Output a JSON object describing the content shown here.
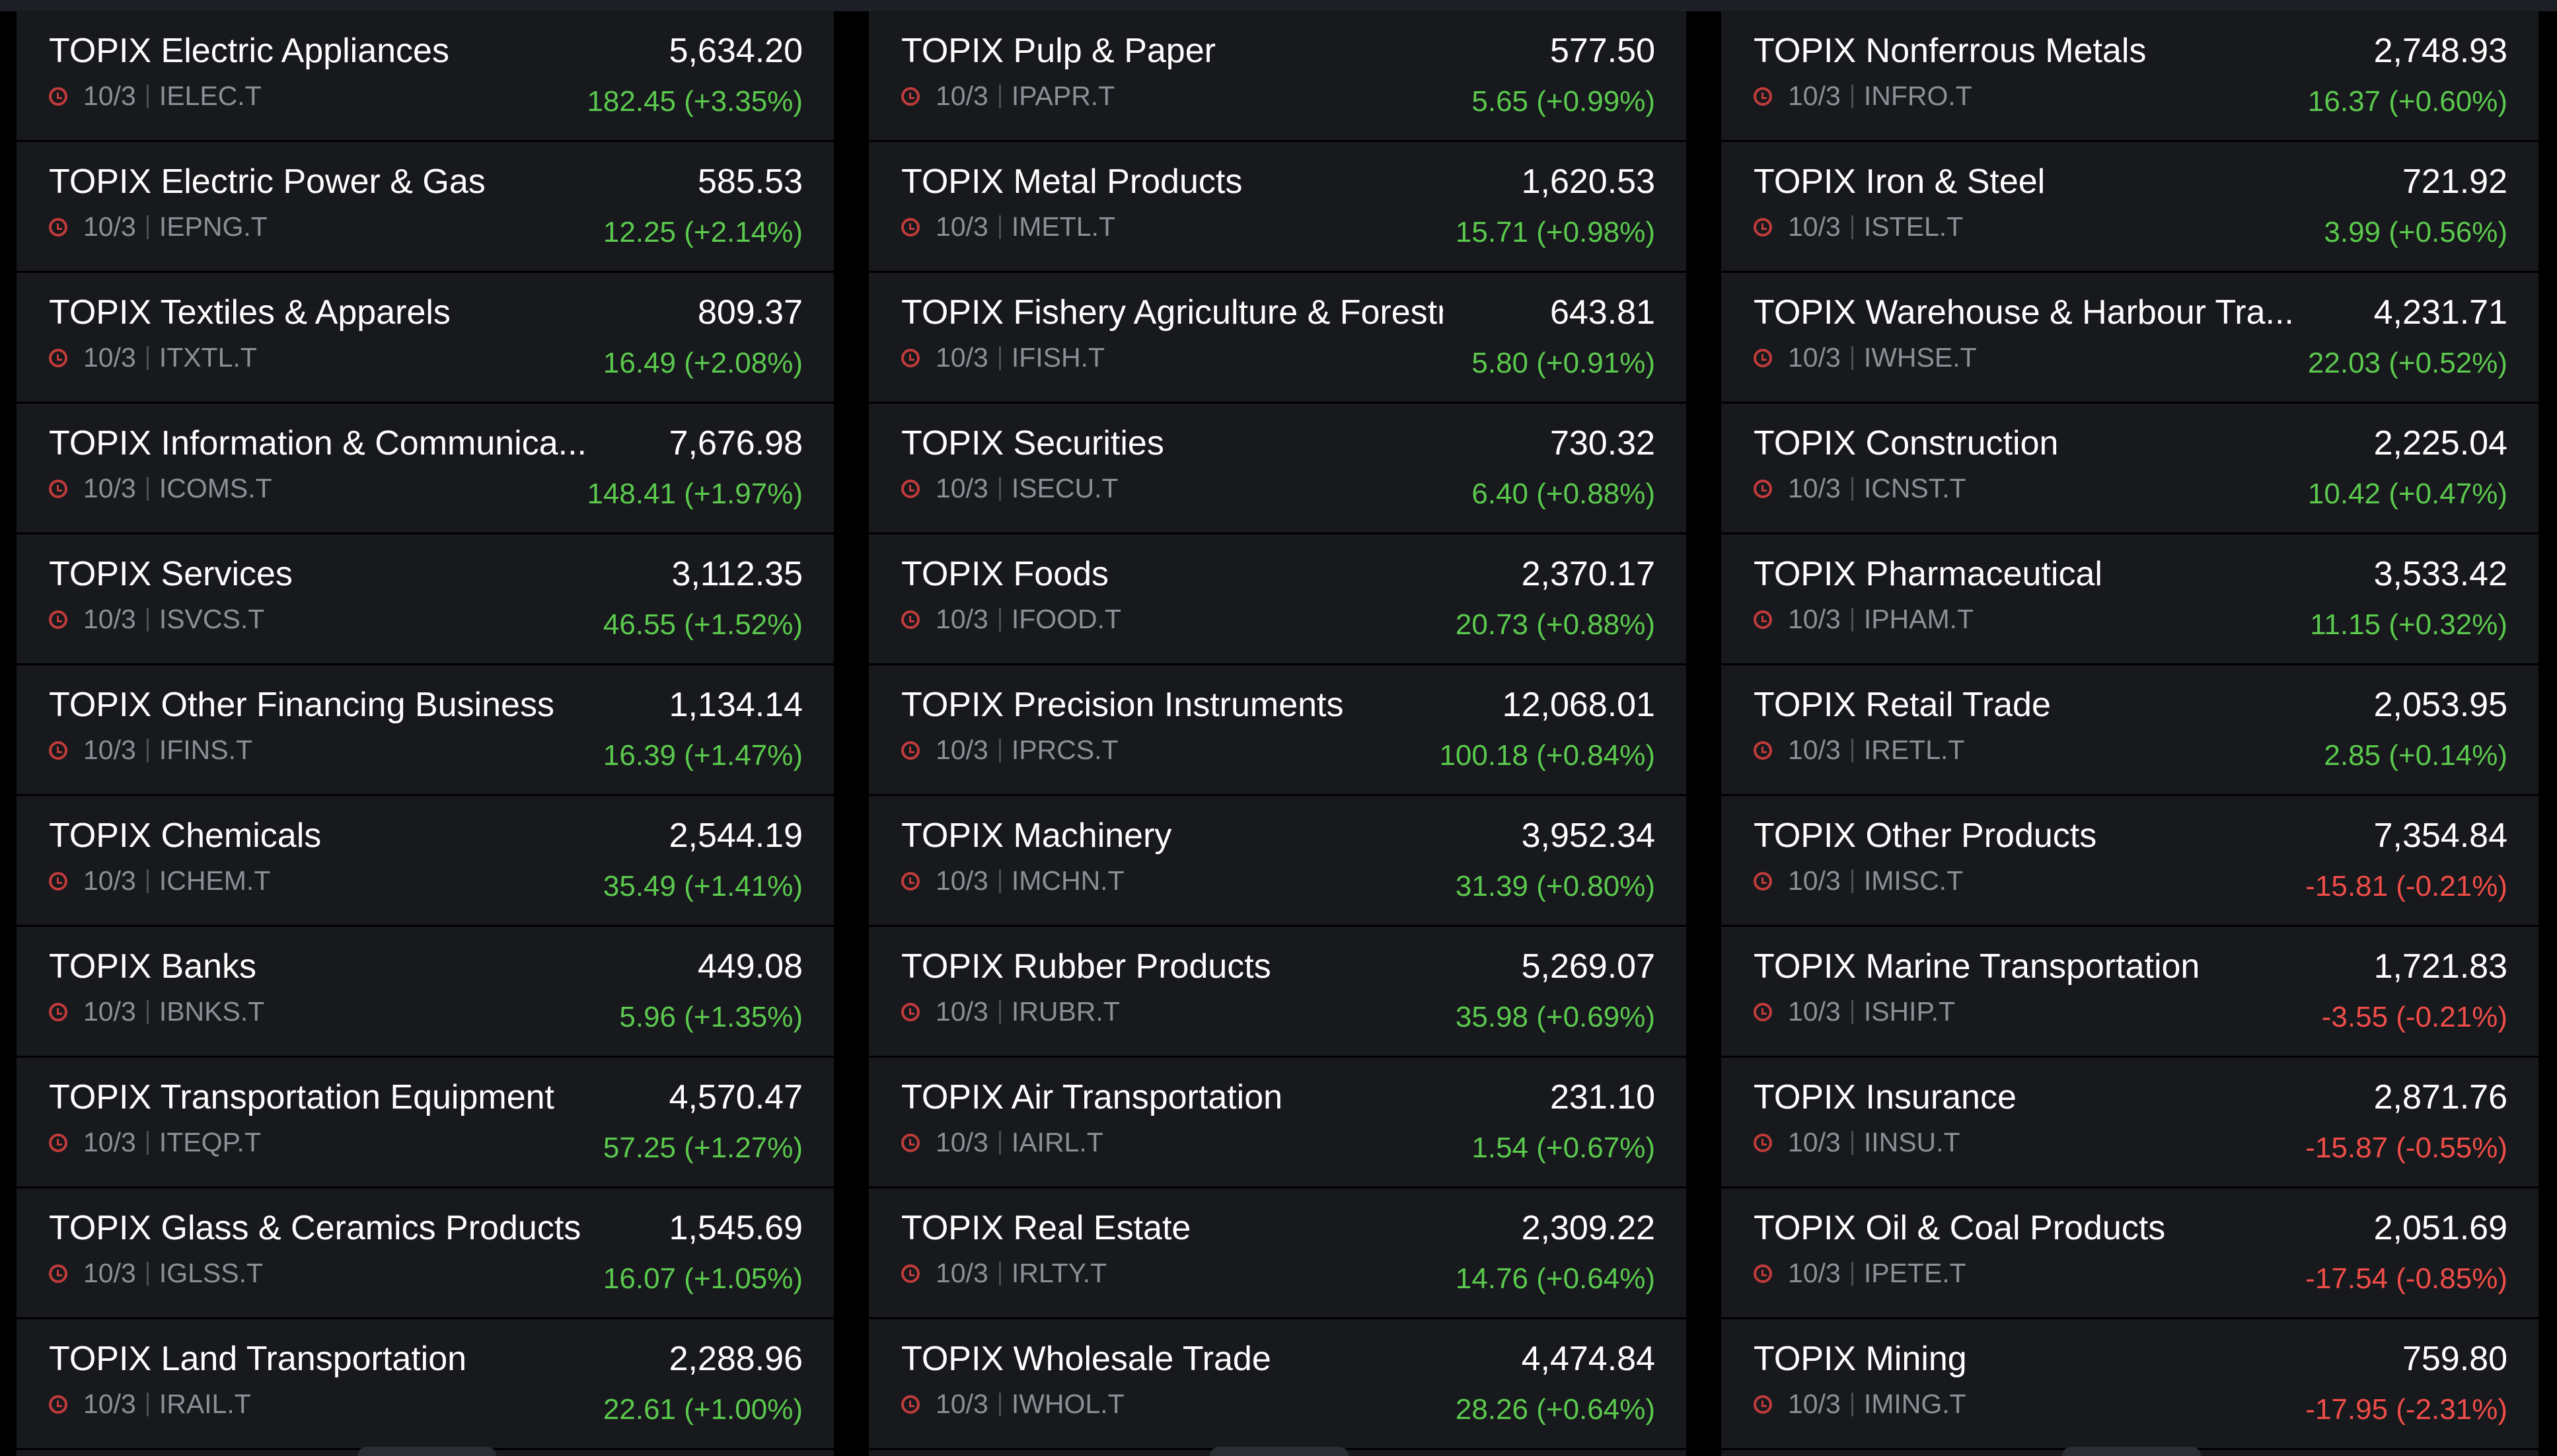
{
  "columns": [
    {
      "rows": [
        {
          "name": "TOPIX Electric Appliances",
          "value": "5,634.20",
          "date": "10/3",
          "symbol": "IELEC.T",
          "change": "182.45 (+3.35%)",
          "direction": "up"
        },
        {
          "name": "TOPIX Electric Power & Gas",
          "value": "585.53",
          "date": "10/3",
          "symbol": "IEPNG.T",
          "change": "12.25 (+2.14%)",
          "direction": "up"
        },
        {
          "name": "TOPIX Textiles & Apparels",
          "value": "809.37",
          "date": "10/3",
          "symbol": "ITXTL.T",
          "change": "16.49 (+2.08%)",
          "direction": "up"
        },
        {
          "name": "TOPIX Information & Communica...",
          "value": "7,676.98",
          "date": "10/3",
          "symbol": "ICOMS.T",
          "change": "148.41 (+1.97%)",
          "direction": "up"
        },
        {
          "name": "TOPIX Services",
          "value": "3,112.35",
          "date": "10/3",
          "symbol": "ISVCS.T",
          "change": "46.55 (+1.52%)",
          "direction": "up"
        },
        {
          "name": "TOPIX Other Financing Business",
          "value": "1,134.14",
          "date": "10/3",
          "symbol": "IFINS.T",
          "change": "16.39 (+1.47%)",
          "direction": "up"
        },
        {
          "name": "TOPIX Chemicals",
          "value": "2,544.19",
          "date": "10/3",
          "symbol": "ICHEM.T",
          "change": "35.49 (+1.41%)",
          "direction": "up"
        },
        {
          "name": "TOPIX Banks",
          "value": "449.08",
          "date": "10/3",
          "symbol": "IBNKS.T",
          "change": "5.96 (+1.35%)",
          "direction": "up"
        },
        {
          "name": "TOPIX Transportation Equipment",
          "value": "4,570.47",
          "date": "10/3",
          "symbol": "ITEQP.T",
          "change": "57.25 (+1.27%)",
          "direction": "up"
        },
        {
          "name": "TOPIX Glass & Ceramics Products",
          "value": "1,545.69",
          "date": "10/3",
          "symbol": "IGLSS.T",
          "change": "16.07 (+1.05%)",
          "direction": "up"
        },
        {
          "name": "TOPIX Land Transportation",
          "value": "2,288.96",
          "date": "10/3",
          "symbol": "IRAIL.T",
          "change": "22.61 (+1.00%)",
          "direction": "up"
        }
      ]
    },
    {
      "rows": [
        {
          "name": "TOPIX Pulp & Paper",
          "value": "577.50",
          "date": "10/3",
          "symbol": "IPAPR.T",
          "change": "5.65 (+0.99%)",
          "direction": "up"
        },
        {
          "name": "TOPIX Metal Products",
          "value": "1,620.53",
          "date": "10/3",
          "symbol": "IMETL.T",
          "change": "15.71 (+0.98%)",
          "direction": "up"
        },
        {
          "name": "TOPIX Fishery Agriculture & Forestry",
          "value": "643.81",
          "date": "10/3",
          "symbol": "IFISH.T",
          "change": "5.80 (+0.91%)",
          "direction": "up"
        },
        {
          "name": "TOPIX Securities",
          "value": "730.32",
          "date": "10/3",
          "symbol": "ISECU.T",
          "change": "6.40 (+0.88%)",
          "direction": "up"
        },
        {
          "name": "TOPIX Foods",
          "value": "2,370.17",
          "date": "10/3",
          "symbol": "IFOOD.T",
          "change": "20.73 (+0.88%)",
          "direction": "up"
        },
        {
          "name": "TOPIX Precision Instruments",
          "value": "12,068.01",
          "date": "10/3",
          "symbol": "IPRCS.T",
          "change": "100.18 (+0.84%)",
          "direction": "up"
        },
        {
          "name": "TOPIX Machinery",
          "value": "3,952.34",
          "date": "10/3",
          "symbol": "IMCHN.T",
          "change": "31.39 (+0.80%)",
          "direction": "up"
        },
        {
          "name": "TOPIX Rubber Products",
          "value": "5,269.07",
          "date": "10/3",
          "symbol": "IRUBR.T",
          "change": "35.98 (+0.69%)",
          "direction": "up"
        },
        {
          "name": "TOPIX Air Transportation",
          "value": "231.10",
          "date": "10/3",
          "symbol": "IAIRL.T",
          "change": "1.54 (+0.67%)",
          "direction": "up"
        },
        {
          "name": "TOPIX Real Estate",
          "value": "2,309.22",
          "date": "10/3",
          "symbol": "IRLTY.T",
          "change": "14.76 (+0.64%)",
          "direction": "up"
        },
        {
          "name": "TOPIX Wholesale Trade",
          "value": "4,474.84",
          "date": "10/3",
          "symbol": "IWHOL.T",
          "change": "28.26 (+0.64%)",
          "direction": "up"
        }
      ]
    },
    {
      "rows": [
        {
          "name": "TOPIX Nonferrous Metals",
          "value": "2,748.93",
          "date": "10/3",
          "symbol": "INFRO.T",
          "change": "16.37 (+0.60%)",
          "direction": "up"
        },
        {
          "name": "TOPIX Iron & Steel",
          "value": "721.92",
          "date": "10/3",
          "symbol": "ISTEL.T",
          "change": "3.99 (+0.56%)",
          "direction": "up"
        },
        {
          "name": "TOPIX Warehouse & Harbour Tra...",
          "value": "4,231.71",
          "date": "10/3",
          "symbol": "IWHSE.T",
          "change": "22.03 (+0.52%)",
          "direction": "up"
        },
        {
          "name": "TOPIX Construction",
          "value": "2,225.04",
          "date": "10/3",
          "symbol": "ICNST.T",
          "change": "10.42 (+0.47%)",
          "direction": "up"
        },
        {
          "name": "TOPIX Pharmaceutical",
          "value": "3,533.42",
          "date": "10/3",
          "symbol": "IPHAM.T",
          "change": "11.15 (+0.32%)",
          "direction": "up"
        },
        {
          "name": "TOPIX Retail Trade",
          "value": "2,053.95",
          "date": "10/3",
          "symbol": "IRETL.T",
          "change": "2.85 (+0.14%)",
          "direction": "up"
        },
        {
          "name": "TOPIX Other Products",
          "value": "7,354.84",
          "date": "10/3",
          "symbol": "IMISC.T",
          "change": "-15.81 (-0.21%)",
          "direction": "down"
        },
        {
          "name": "TOPIX Marine Transportation",
          "value": "1,721.83",
          "date": "10/3",
          "symbol": "ISHIP.T",
          "change": "-3.55 (-0.21%)",
          "direction": "down"
        },
        {
          "name": "TOPIX Insurance",
          "value": "2,871.76",
          "date": "10/3",
          "symbol": "IINSU.T",
          "change": "-15.87 (-0.55%)",
          "direction": "down"
        },
        {
          "name": "TOPIX Oil & Coal Products",
          "value": "2,051.69",
          "date": "10/3",
          "symbol": "IPETE.T",
          "change": "-17.54 (-0.85%)",
          "direction": "down"
        },
        {
          "name": "TOPIX Mining",
          "value": "759.80",
          "date": "10/3",
          "symbol": "IMING.T",
          "change": "-17.95 (-2.31%)",
          "direction": "down"
        }
      ]
    }
  ],
  "colors": {
    "up": "#5bc94d",
    "down": "#f04d48",
    "clock": "#c23b3b"
  }
}
